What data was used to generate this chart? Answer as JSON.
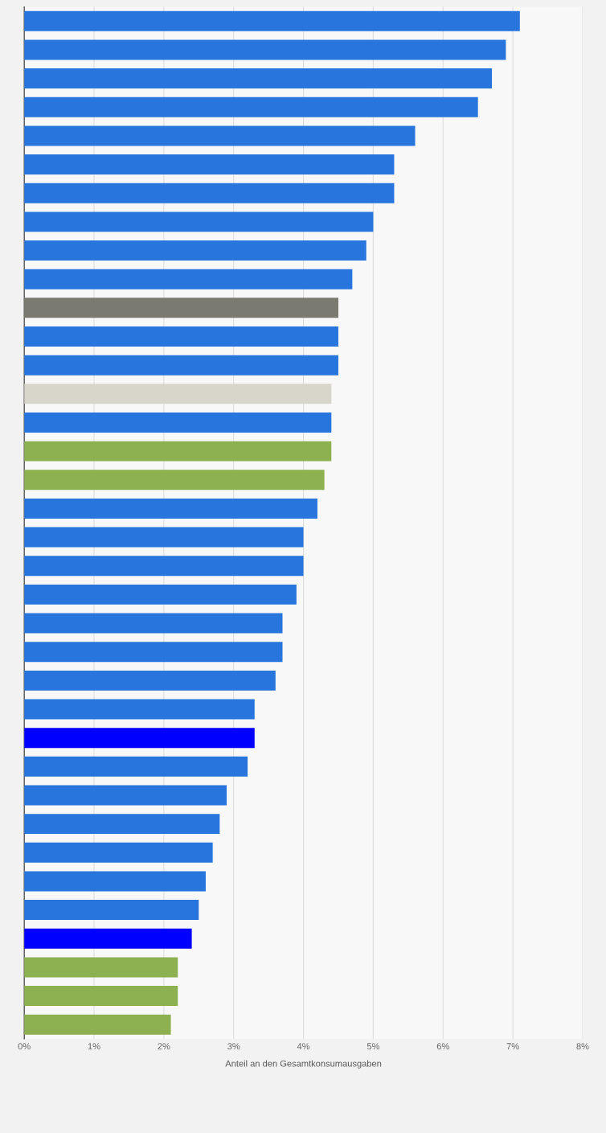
{
  "chart_data": {
    "type": "bar",
    "orientation": "horizontal",
    "xlabel": "Anteil an den Gesamtkonsumausgaben",
    "categories": [
      null,
      null,
      null,
      null,
      null,
      null,
      null,
      null,
      null,
      null,
      null,
      null,
      null,
      null,
      null,
      null,
      null,
      null,
      null,
      null,
      null,
      null,
      null,
      null,
      null,
      null,
      null,
      null,
      null,
      null,
      null,
      null,
      null,
      null,
      null,
      null
    ],
    "values": [
      7.1,
      6.9,
      6.7,
      6.5,
      5.6,
      5.3,
      5.3,
      5.0,
      4.9,
      4.7,
      4.5,
      4.5,
      4.5,
      4.4,
      4.4,
      4.4,
      4.3,
      4.2,
      4.0,
      4.0,
      3.9,
      3.7,
      3.7,
      3.6,
      3.3,
      3.3,
      3.2,
      2.9,
      2.8,
      2.7,
      2.6,
      2.5,
      2.4,
      2.2,
      2.2,
      2.1
    ],
    "colors": [
      "#2876dd",
      "#2876dd",
      "#2876dd",
      "#2876dd",
      "#2876dd",
      "#2876dd",
      "#2876dd",
      "#2876dd",
      "#2876dd",
      "#2876dd",
      "#7a7a70",
      "#2876dd",
      "#2876dd",
      "#d8d5cb",
      "#2876dd",
      "#8db050",
      "#8db050",
      "#2876dd",
      "#2876dd",
      "#2876dd",
      "#2876dd",
      "#2876dd",
      "#2876dd",
      "#2876dd",
      "#2876dd",
      "#0000ff",
      "#2876dd",
      "#2876dd",
      "#2876dd",
      "#2876dd",
      "#2876dd",
      "#2876dd",
      "#0000ff",
      "#8db050",
      "#8db050",
      "#8db050"
    ],
    "xlim": [
      0,
      8
    ],
    "xticks": [
      {
        "value": 0,
        "label": "0%"
      },
      {
        "value": 1,
        "label": "1%"
      },
      {
        "value": 2,
        "label": "2%"
      },
      {
        "value": 3,
        "label": "3%"
      },
      {
        "value": 4,
        "label": "4%"
      },
      {
        "value": 5,
        "label": "5%"
      },
      {
        "value": 6,
        "label": "6%"
      },
      {
        "value": 7,
        "label": "7%"
      },
      {
        "value": 8,
        "label": "8%"
      }
    ],
    "grid": "x"
  }
}
